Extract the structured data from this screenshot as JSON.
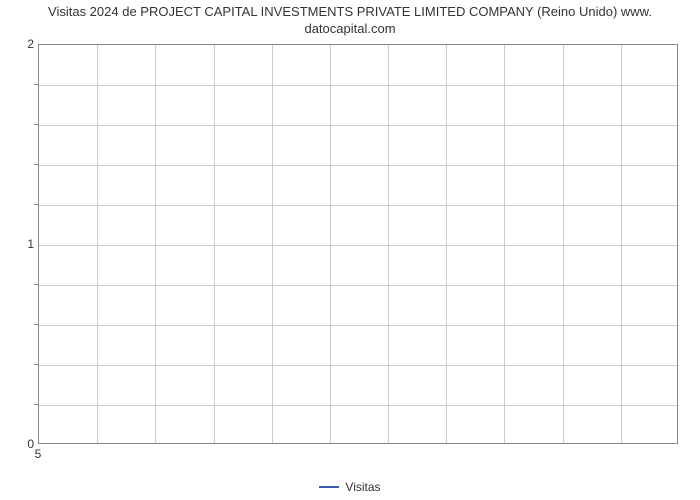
{
  "chart": {
    "type": "line",
    "title_line1": "Visitas 2024 de PROJECT CAPITAL INVESTMENTS PRIVATE LIMITED COMPANY (Reino Unido) www.",
    "title_line2": "datocapital.com",
    "title_fontsize": 13,
    "title_color": "#333333",
    "background_color": "#ffffff",
    "border_color": "#888888",
    "grid_color": "#cccccc",
    "y_axis": {
      "min": 0,
      "max": 2,
      "major_ticks": [
        0,
        1,
        2
      ],
      "minor_tick_count_between": 4
    },
    "x_axis": {
      "ticks": [
        5
      ],
      "grid_divisions": 11
    },
    "series": [],
    "legend": {
      "label": "Visitas",
      "color": "#3b5bb5",
      "swatch_width": 20,
      "swatch_height": 2,
      "fontsize": 12
    }
  }
}
